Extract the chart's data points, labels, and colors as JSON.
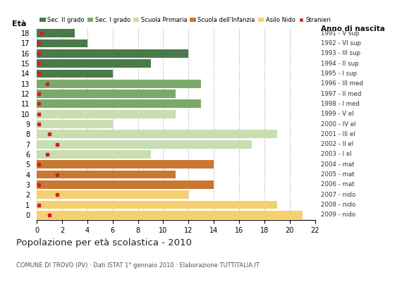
{
  "ages": [
    18,
    17,
    16,
    15,
    14,
    13,
    12,
    11,
    10,
    9,
    8,
    7,
    6,
    5,
    4,
    3,
    2,
    1,
    0
  ],
  "anno_nascita": [
    "1991 - V sup",
    "1992 - VI sup",
    "1993 - III sup",
    "1994 - II sup",
    "1995 - I sup",
    "1996 - III med",
    "1997 - II med",
    "1998 - I med",
    "1999 - V el",
    "2000 - IV el",
    "2001 - III el",
    "2002 - II el",
    "2003 - I el",
    "2004 - mat",
    "2005 - mat",
    "2006 - mat",
    "2007 - nido",
    "2008 - nido",
    "2009 - nido"
  ],
  "bar_values": [
    3,
    4,
    12,
    9,
    6,
    13,
    11,
    13,
    11,
    6,
    19,
    17,
    9,
    14,
    11,
    14,
    12,
    19,
    21
  ],
  "bar_colors": [
    "#4a7a4a",
    "#4a7a4a",
    "#4a7a4a",
    "#4a7a4a",
    "#4a7a4a",
    "#7aaa6a",
    "#7aaa6a",
    "#7aaa6a",
    "#c8ddb0",
    "#c8ddb0",
    "#c8ddb0",
    "#c8ddb0",
    "#c8ddb0",
    "#c87830",
    "#c87830",
    "#c87830",
    "#f5d070",
    "#f5d070",
    "#f5d070"
  ],
  "stranieri_x": [
    0.4,
    0.15,
    0.15,
    0.15,
    0.15,
    0.8,
    0.15,
    0.15,
    0.15,
    0.15,
    1.0,
    1.6,
    0.8,
    0.15,
    1.6,
    0.15,
    1.6,
    0.15,
    1.0
  ],
  "legend_labels": [
    "Sec. II grado",
    "Sec. I grado",
    "Scuola Primaria",
    "Scuola dell'Infanzia",
    "Asilo Nido",
    "Stranieri"
  ],
  "legend_colors": [
    "#4a7a4a",
    "#7aaa6a",
    "#c8ddb0",
    "#c87830",
    "#f5d070",
    "#cc2222"
  ],
  "title": "Popolazione per età scolastica - 2010",
  "subtitle": "COMUNE DI TROVO (PV) · Dati ISTAT 1° gennaio 2010 · Elaborazione TUTTITALIA.IT",
  "label_eta": "Età",
  "label_anno": "Anno di nascita",
  "xlim": [
    0,
    22
  ],
  "xticks": [
    0,
    2,
    4,
    6,
    8,
    10,
    12,
    14,
    16,
    18,
    20,
    22
  ],
  "background_color": "#ffffff",
  "grid_color": "#999999"
}
